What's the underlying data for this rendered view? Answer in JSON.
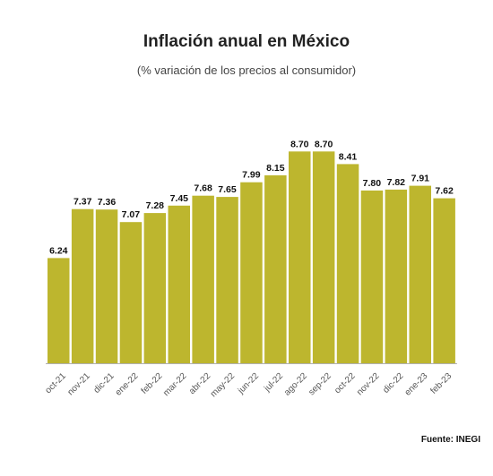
{
  "chart_data": {
    "type": "bar",
    "title": "Inflación anual en México",
    "subtitle": "(% variación de los precios al consumidor)",
    "source": "Fuente: INEGI",
    "categories": [
      "oct-21",
      "nov-21",
      "dic-21",
      "ene-22",
      "feb-22",
      "mar-22",
      "abr-22",
      "may-22",
      "jun-22",
      "jul-22",
      "ago-22",
      "sep-22",
      "oct-22",
      "nov-22",
      "dic-22",
      "ene-23",
      "feb-23"
    ],
    "values": [
      6.24,
      7.37,
      7.36,
      7.07,
      7.28,
      7.45,
      7.68,
      7.65,
      7.99,
      8.15,
      8.7,
      8.7,
      8.41,
      7.8,
      7.82,
      7.91,
      7.62
    ],
    "value_labels": [
      "6.24",
      "7.37",
      "7.36",
      "7.07",
      "7.28",
      "7.45",
      "7.68",
      "7.65",
      "7.99",
      "8.15",
      "8.70",
      "8.70",
      "8.41",
      "7.80",
      "7.82",
      "7.91",
      "7.62"
    ],
    "bar_color": "#bdb62e",
    "axis_color": "#b0b0b0",
    "xlabel": "",
    "ylabel": "",
    "ylim_approx": [
      3.8,
      8.8
    ],
    "grid": false,
    "legend": "none"
  }
}
